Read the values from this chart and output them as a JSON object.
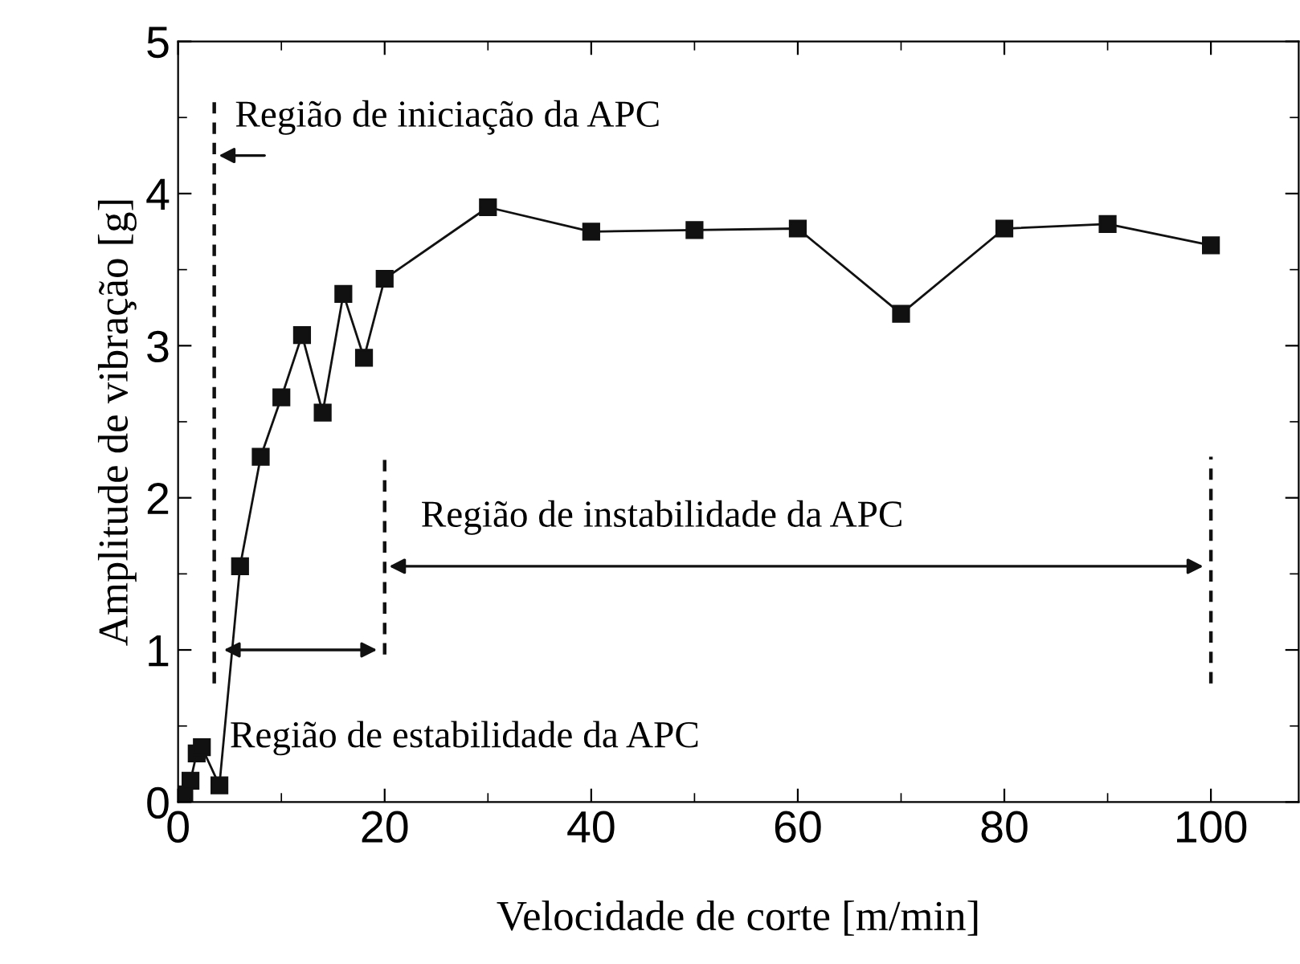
{
  "chart_data": {
    "type": "line",
    "xlabel": "Velocidade de corte [m/min]",
    "ylabel": "Amplitude de vibração [g]",
    "x": [
      0.6,
      1.2,
      1.8,
      2.3,
      4,
      6,
      8,
      10,
      12,
      14,
      16,
      18,
      20,
      30,
      40,
      50,
      60,
      70,
      80,
      90,
      100
    ],
    "series": [
      {
        "color": "#111111",
        "values": [
          0.05,
          0.14,
          0.32,
          0.36,
          0.11,
          1.55,
          2.27,
          2.66,
          3.07,
          2.56,
          3.34,
          2.92,
          3.44,
          3.91,
          3.75,
          3.76,
          3.77,
          3.21,
          3.77,
          3.8,
          3.66
        ]
      }
    ],
    "xlim": [
      0,
      108.5
    ],
    "ylim": [
      0,
      5
    ],
    "xticks": [
      0,
      20,
      40,
      60,
      80,
      100
    ],
    "yticks": [
      0,
      1,
      2,
      3,
      4,
      5
    ],
    "marker": "square",
    "line_style": "solid",
    "grid": false,
    "legend": false,
    "ref_lines": [
      {
        "axis": "x",
        "value": 3.5,
        "line_style": "dashed",
        "color": "#111111"
      },
      {
        "axis": "x",
        "value": 20,
        "line_style": "dashed",
        "color": "#111111"
      },
      {
        "axis": "x",
        "value": 100,
        "line_style": "dashed",
        "color": "#111111"
      }
    ],
    "annotations": [
      "Região de iniciação da APC",
      "Região de instabilidade da APC",
      "Região de estabilidade da APC"
    ]
  }
}
